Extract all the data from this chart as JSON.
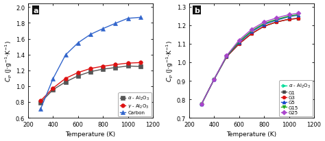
{
  "panel_a": {
    "label": "a",
    "xlim": [
      200,
      1200
    ],
    "ylim": [
      0.6,
      2.05
    ],
    "xticks": [
      200,
      400,
      600,
      800,
      1000,
      1200
    ],
    "yticks": [
      0.6,
      0.8,
      1.0,
      1.2,
      1.4,
      1.6,
      1.8,
      2.0
    ],
    "xlabel": "Temperature (K)",
    "ylabel": "$C_p$ (J$\\cdot$g$^{-1}$$\\cdot$K$^{-1}$)",
    "series": [
      {
        "label": "$\\alpha$ - Al$_2$O$_3$",
        "color": "#555555",
        "marker": "s",
        "markersize": 4,
        "x": [
          300,
          400,
          500,
          600,
          700,
          800,
          900,
          1000,
          1100
        ],
        "y": [
          0.793,
          0.955,
          1.053,
          1.13,
          1.183,
          1.215,
          1.235,
          1.255,
          1.248
        ]
      },
      {
        "label": "$\\gamma$ - Al$_2$O$_3$",
        "color": "#dd1111",
        "marker": "o",
        "markersize": 4,
        "x": [
          300,
          400,
          500,
          600,
          700,
          800,
          900,
          1000,
          1100
        ],
        "y": [
          0.815,
          0.975,
          1.098,
          1.172,
          1.223,
          1.252,
          1.273,
          1.291,
          1.298
        ]
      },
      {
        "label": "Carbon",
        "color": "#3366cc",
        "marker": "^",
        "markersize": 4,
        "x": [
          300,
          400,
          500,
          600,
          700,
          800,
          900,
          1000,
          1100
        ],
        "y": [
          0.71,
          1.095,
          1.395,
          1.548,
          1.655,
          1.728,
          1.795,
          1.858,
          1.87
        ]
      }
    ],
    "legend_loc": "lower right"
  },
  "panel_b": {
    "label": "b",
    "xlim": [
      200,
      1200
    ],
    "ylim": [
      0.7,
      1.32
    ],
    "xticks": [
      200,
      400,
      600,
      800,
      1000,
      1200
    ],
    "yticks": [
      0.7,
      0.8,
      0.9,
      1.0,
      1.1,
      1.2,
      1.3
    ],
    "xlabel": "Temperature (K)",
    "ylabel": "$C_p$ (J$\\cdot$g$^{-1}$$\\cdot$K$^{-1}$)",
    "series": [
      {
        "label": "$\\alpha$ - Al$_2$O$_3$",
        "color": "#00dd99",
        "marker": ">",
        "markersize": 3.5,
        "x": [
          300,
          400,
          500,
          600,
          700,
          800,
          900,
          1000,
          1075
        ],
        "y": [
          0.775,
          0.908,
          1.03,
          1.1,
          1.155,
          1.195,
          1.218,
          1.233,
          1.237
        ]
      },
      {
        "label": "G1",
        "color": "#444444",
        "marker": "s",
        "markersize": 3.5,
        "x": [
          300,
          400,
          500,
          600,
          700,
          800,
          900,
          1000,
          1075
        ],
        "y": [
          0.775,
          0.908,
          1.03,
          1.1,
          1.155,
          1.195,
          1.218,
          1.233,
          1.237
        ]
      },
      {
        "label": "G3",
        "color": "#dd1111",
        "marker": "o",
        "markersize": 3.5,
        "x": [
          300,
          400,
          500,
          600,
          700,
          800,
          900,
          1000,
          1075
        ],
        "y": [
          0.775,
          0.908,
          1.03,
          1.1,
          1.155,
          1.195,
          1.218,
          1.233,
          1.237
        ]
      },
      {
        "label": "G5",
        "color": "#1144cc",
        "marker": "^",
        "markersize": 3.5,
        "x": [
          300,
          400,
          500,
          600,
          700,
          800,
          900,
          1000,
          1075
        ],
        "y": [
          0.775,
          0.908,
          1.032,
          1.108,
          1.165,
          1.205,
          1.228,
          1.247,
          1.255
        ]
      },
      {
        "label": "G15",
        "color": "#22aa22",
        "marker": "v",
        "markersize": 3.5,
        "x": [
          300,
          400,
          500,
          600,
          700,
          800,
          900,
          1000,
          1075
        ],
        "y": [
          0.775,
          0.908,
          1.033,
          1.112,
          1.17,
          1.21,
          1.232,
          1.25,
          1.258
        ]
      },
      {
        "label": "G25",
        "color": "#aa44cc",
        "marker": "D",
        "markersize": 3.5,
        "x": [
          300,
          400,
          500,
          600,
          700,
          800,
          900,
          1000,
          1075
        ],
        "y": [
          0.775,
          0.908,
          1.036,
          1.12,
          1.178,
          1.218,
          1.24,
          1.258,
          1.265
        ]
      }
    ],
    "legend_loc": "lower right"
  },
  "bg_color": "#ffffff",
  "figure_bg": "#ffffff",
  "label_box_color": "#111111",
  "label_text_color": "#ffffff"
}
